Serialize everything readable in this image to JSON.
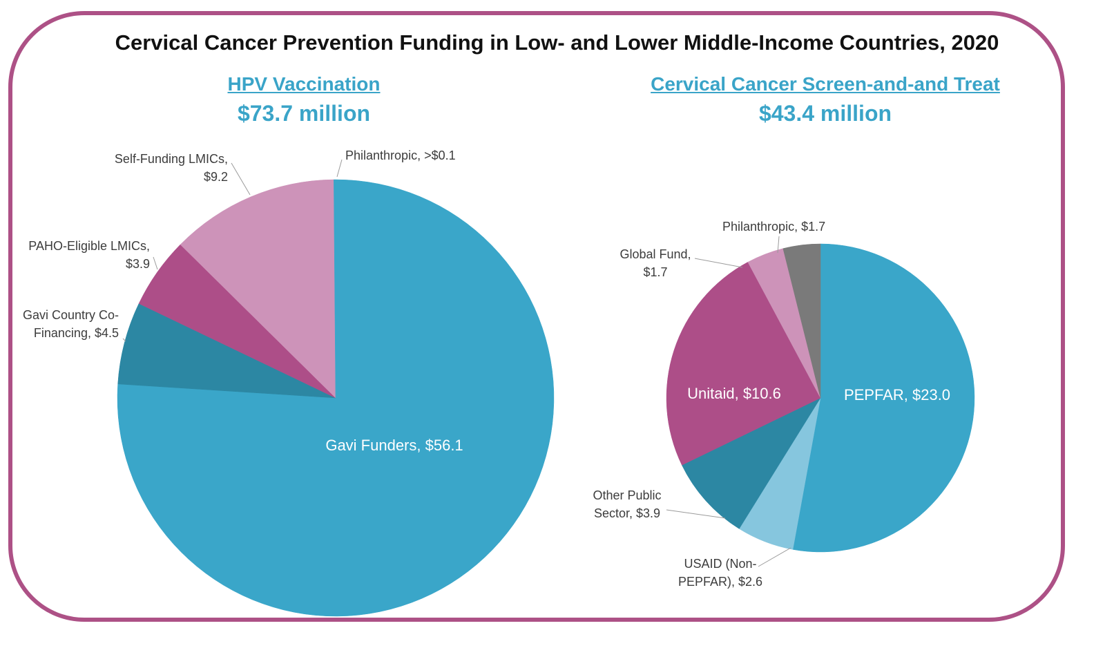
{
  "title": "Cervical Cancer Prevention Funding in Low- and Lower Middle-Income Countries, 2020",
  "chart_data": [
    {
      "type": "pie",
      "title": "HPV Vaccination",
      "subtitle": "$73.7 million",
      "slices": [
        {
          "label": [
            "Gavi Funders, $56.1"
          ],
          "value": 56.1,
          "color": "#3aa6c9",
          "inside": true
        },
        {
          "label": [
            "Gavi Country Co-",
            "Financing, $4.5"
          ],
          "value": 4.5,
          "color": "#2c87a3",
          "inside": false
        },
        {
          "label": [
            "PAHO-Eligible LMICs,",
            "$3.9"
          ],
          "value": 3.9,
          "color": "#ad4e88",
          "inside": false
        },
        {
          "label": [
            "Self-Funding LMICs,",
            "$9.2"
          ],
          "value": 9.2,
          "color": "#cd93b9",
          "inside": false
        },
        {
          "label": [
            "Philanthropic, >$0.1"
          ],
          "value": 0.1,
          "color": "#3aa6c9",
          "inside": false
        }
      ]
    },
    {
      "type": "pie",
      "title": "Cervical Cancer Screen-and-and Treat",
      "subtitle": "$43.4 million",
      "slices": [
        {
          "label": [
            "PEPFAR, $23.0"
          ],
          "value": 23.0,
          "color": "#3aa6c9",
          "inside": true
        },
        {
          "label": [
            "USAID (Non-",
            "PEPFAR), $2.6"
          ],
          "value": 2.6,
          "color": "#86c6de",
          "inside": false
        },
        {
          "label": [
            "Other Public",
            "Sector, $3.9"
          ],
          "value": 3.9,
          "color": "#2c87a3",
          "inside": false
        },
        {
          "label": [
            "Unitaid, $10.6"
          ],
          "value": 10.6,
          "color": "#ad4e88",
          "inside": true
        },
        {
          "label": [
            "Global Fund,",
            "$1.7"
          ],
          "value": 1.7,
          "color": "#cd93b9",
          "inside": false
        },
        {
          "label": [
            "Philanthropic, $1.7"
          ],
          "value": 1.7,
          "color": "#7a7a7a",
          "inside": false
        }
      ]
    }
  ]
}
